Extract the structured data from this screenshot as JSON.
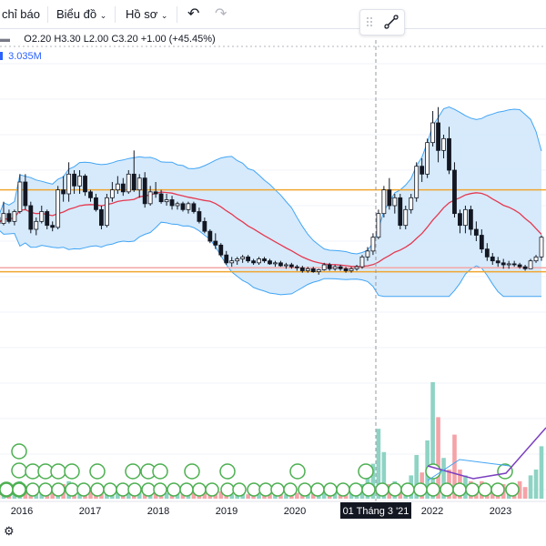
{
  "toolbar": {
    "indicators_label": "chỉ báo",
    "chart_label": "Biểu đồ",
    "profile_label": "Hồ sơ",
    "undo_icon": "undo-icon",
    "redo_icon": "redo-icon"
  },
  "legend": {
    "open": "O2.20",
    "high": "H3.30",
    "low": "L2.00",
    "close": "C3.20",
    "change": "+1.00 (+45.45%)",
    "volume": "3.035M"
  },
  "crosshair_label": "01 Tháng 3 '21",
  "colors": {
    "up": "#ffffff",
    "down": "#131722",
    "ma": "#e53950",
    "band_fill": "#cfe6fa",
    "band_line": "#42a5f5",
    "h_line_orange": "#f0a630",
    "h_line_pink": "#f4a6a6",
    "vol_up": "#8ed3c4",
    "vol_down": "#f5a3a8",
    "event": "#4caf50"
  },
  "chart_data": {
    "type": "candlestick",
    "interval": "monthly",
    "x_ticks": [
      "2016",
      "2017",
      "2018",
      "2019",
      "2020",
      "2022",
      "2023"
    ],
    "ylim": [
      0.0,
      12.0
    ],
    "horizontal_lines": [
      5.6,
      1.65,
      1.45
    ],
    "candles": [
      [
        4.2,
        4.4,
        3.6,
        3.9
      ],
      [
        3.9,
        5.0,
        3.8,
        4.4
      ],
      [
        4.4,
        4.6,
        3.9,
        4.0
      ],
      [
        4.0,
        4.6,
        3.8,
        4.5
      ],
      [
        4.5,
        6.4,
        4.4,
        6.0
      ],
      [
        6.0,
        6.4,
        4.6,
        4.8
      ],
      [
        4.8,
        5.0,
        3.4,
        3.6
      ],
      [
        3.6,
        4.2,
        3.3,
        4.0
      ],
      [
        4.0,
        4.8,
        3.9,
        4.5
      ],
      [
        4.5,
        4.6,
        3.6,
        3.8
      ],
      [
        3.8,
        4.0,
        3.5,
        3.7
      ],
      [
        3.7,
        5.8,
        3.6,
        5.6
      ],
      [
        5.6,
        6.3,
        5.0,
        5.4
      ],
      [
        5.4,
        7.0,
        5.0,
        6.4
      ],
      [
        6.4,
        6.6,
        5.4,
        5.8
      ],
      [
        5.8,
        6.6,
        5.4,
        6.3
      ],
      [
        6.3,
        6.4,
        5.3,
        5.5
      ],
      [
        5.5,
        5.6,
        5.0,
        5.2
      ],
      [
        5.2,
        5.4,
        4.5,
        4.6
      ],
      [
        4.6,
        4.8,
        3.6,
        3.8
      ],
      [
        3.8,
        5.4,
        3.7,
        5.2
      ],
      [
        5.2,
        6.0,
        5.0,
        5.6
      ],
      [
        5.6,
        6.3,
        5.4,
        5.9
      ],
      [
        5.9,
        6.2,
        5.3,
        5.5
      ],
      [
        5.5,
        6.6,
        5.4,
        6.4
      ],
      [
        6.4,
        7.6,
        5.5,
        5.6
      ],
      [
        5.6,
        6.4,
        5.2,
        6.2
      ],
      [
        6.2,
        6.5,
        4.7,
        4.9
      ],
      [
        4.9,
        5.8,
        4.8,
        5.5
      ],
      [
        5.5,
        6.0,
        5.2,
        5.4
      ],
      [
        5.4,
        5.6,
        4.9,
        5.0
      ],
      [
        5.0,
        5.4,
        4.8,
        5.1
      ],
      [
        5.1,
        5.3,
        4.6,
        4.8
      ],
      [
        4.8,
        5.0,
        4.6,
        4.9
      ],
      [
        4.9,
        5.0,
        4.5,
        4.6
      ],
      [
        4.6,
        5.0,
        4.4,
        4.9
      ],
      [
        4.9,
        5.0,
        4.4,
        4.5
      ],
      [
        4.5,
        4.7,
        3.9,
        4.0
      ],
      [
        4.0,
        4.2,
        3.4,
        3.5
      ],
      [
        3.5,
        3.6,
        2.9,
        3.0
      ],
      [
        3.0,
        3.4,
        2.6,
        2.8
      ],
      [
        2.8,
        2.9,
        2.2,
        2.3
      ],
      [
        2.3,
        2.5,
        1.8,
        1.9
      ],
      [
        1.9,
        2.2,
        1.7,
        2.0
      ],
      [
        2.0,
        2.2,
        1.8,
        2.1
      ],
      [
        2.1,
        2.3,
        1.9,
        2.2
      ],
      [
        2.2,
        2.3,
        1.9,
        2.0
      ],
      [
        2.0,
        2.1,
        1.8,
        1.9
      ],
      [
        1.9,
        2.2,
        1.8,
        2.1
      ],
      [
        2.1,
        2.2,
        1.9,
        2.0
      ],
      [
        2.0,
        2.1,
        1.8,
        1.85
      ],
      [
        1.85,
        2.0,
        1.7,
        1.9
      ],
      [
        1.9,
        2.0,
        1.7,
        1.75
      ],
      [
        1.75,
        1.9,
        1.6,
        1.8
      ],
      [
        1.8,
        1.9,
        1.6,
        1.7
      ],
      [
        1.7,
        1.8,
        1.5,
        1.65
      ],
      [
        1.65,
        1.75,
        1.4,
        1.5
      ],
      [
        1.5,
        1.7,
        1.4,
        1.6
      ],
      [
        1.6,
        1.7,
        1.4,
        1.45
      ],
      [
        1.45,
        1.6,
        1.3,
        1.55
      ],
      [
        1.55,
        1.9,
        1.5,
        1.8
      ],
      [
        1.8,
        1.9,
        1.5,
        1.6
      ],
      [
        1.6,
        1.8,
        1.5,
        1.7
      ],
      [
        1.7,
        1.8,
        1.5,
        1.6
      ],
      [
        1.6,
        1.7,
        1.4,
        1.5
      ],
      [
        1.5,
        1.7,
        1.4,
        1.6
      ],
      [
        1.6,
        1.8,
        1.5,
        1.7
      ],
      [
        1.7,
        2.3,
        1.6,
        2.2
      ],
      [
        2.2,
        2.7,
        2.0,
        2.5
      ],
      [
        2.5,
        3.4,
        2.3,
        3.2
      ],
      [
        3.2,
        4.6,
        3.1,
        4.4
      ],
      [
        4.4,
        5.8,
        4.2,
        5.6
      ],
      [
        5.6,
        6.2,
        4.6,
        4.8
      ],
      [
        4.8,
        5.4,
        4.4,
        5.2
      ],
      [
        5.2,
        5.4,
        3.6,
        3.8
      ],
      [
        3.8,
        4.8,
        3.6,
        4.6
      ],
      [
        4.6,
        5.4,
        4.4,
        5.2
      ],
      [
        5.2,
        7.0,
        5.0,
        6.8
      ],
      [
        6.8,
        7.2,
        6.0,
        6.4
      ],
      [
        6.4,
        8.2,
        6.2,
        8.0
      ],
      [
        8.0,
        9.6,
        7.8,
        9.0
      ],
      [
        9.0,
        9.8,
        7.0,
        7.6
      ],
      [
        7.6,
        8.4,
        7.2,
        8.2
      ],
      [
        8.2,
        8.8,
        6.4,
        6.6
      ],
      [
        6.6,
        7.0,
        4.2,
        4.4
      ],
      [
        4.4,
        4.6,
        3.4,
        3.8
      ],
      [
        3.8,
        4.8,
        3.4,
        4.6
      ],
      [
        4.6,
        4.8,
        3.3,
        3.6
      ],
      [
        3.6,
        4.0,
        3.0,
        3.3
      ],
      [
        3.3,
        3.6,
        2.4,
        2.6
      ],
      [
        2.6,
        2.9,
        2.0,
        2.2
      ],
      [
        2.2,
        2.4,
        1.8,
        2.0
      ],
      [
        2.0,
        2.2,
        1.7,
        1.9
      ],
      [
        1.9,
        2.1,
        1.6,
        1.8
      ],
      [
        1.8,
        2.0,
        1.6,
        1.85
      ],
      [
        1.85,
        2.0,
        1.7,
        1.8
      ],
      [
        1.8,
        1.9,
        1.6,
        1.7
      ],
      [
        1.7,
        1.8,
        1.5,
        1.6
      ],
      [
        1.6,
        2.1,
        1.6,
        2.0
      ],
      [
        2.0,
        2.3,
        1.9,
        2.2
      ],
      [
        2.2,
        3.3,
        2.0,
        3.2
      ]
    ],
    "volume": [
      0.3,
      0.2,
      0.25,
      0.3,
      0.6,
      0.4,
      0.3,
      0.2,
      0.25,
      0.3,
      0.2,
      0.35,
      0.5,
      0.6,
      0.5,
      0.4,
      0.3,
      0.25,
      0.3,
      0.2,
      0.2,
      0.3,
      0.4,
      0.3,
      0.3,
      0.4,
      0.3,
      0.3,
      0.25,
      0.2,
      0.2,
      0.2,
      0.25,
      0.2,
      0.2,
      0.25,
      0.2,
      0.2,
      0.2,
      0.25,
      0.2,
      0.25,
      0.2,
      0.15,
      0.2,
      0.2,
      0.15,
      0.2,
      0.15,
      0.15,
      0.2,
      0.2,
      0.15,
      0.15,
      0.2,
      0.2,
      0.25,
      0.2,
      0.2,
      0.2,
      0.3,
      0.25,
      0.2,
      0.2,
      0.2,
      0.2,
      0.3,
      0.5,
      0.8,
      1.2,
      2.4,
      1.6,
      0.5,
      0.6,
      0.4,
      0.5,
      0.8,
      1.5,
      0.9,
      2.0,
      4.0,
      2.8,
      1.4,
      1.0,
      2.2,
      1.0,
      0.8,
      0.6,
      0.5,
      0.6,
      0.5,
      0.4,
      0.4,
      0.5,
      0.4,
      0.5,
      0.6,
      0.4,
      0.8,
      1.0,
      1.8
    ]
  }
}
